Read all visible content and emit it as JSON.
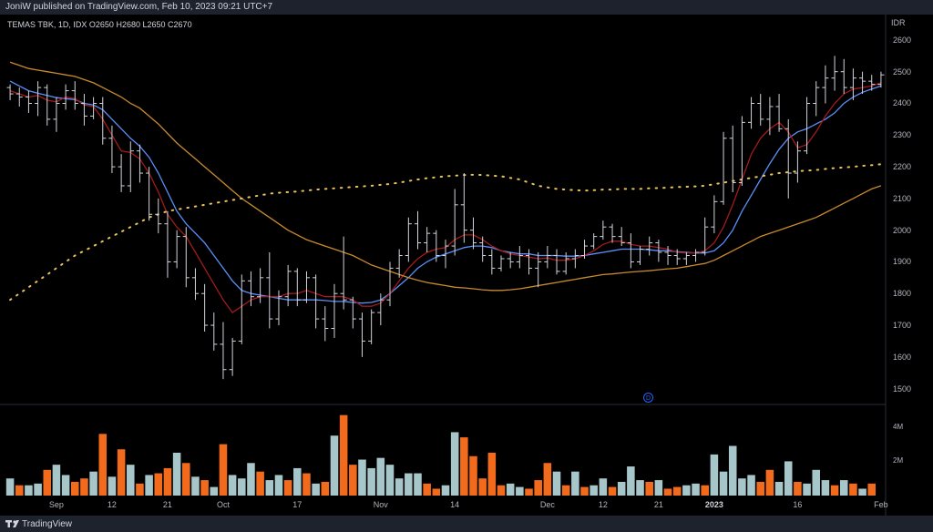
{
  "header": {
    "published_text": "JoniW published on TradingView.com, Feb 10, 2023 09:21 UTC+7"
  },
  "footer": {
    "brand": "TradingView"
  },
  "legend": {
    "symbol": "TEMAS TBK, 1D, IDX",
    "open_label": "O",
    "open": "2650",
    "high_label": "H",
    "high": "2680",
    "low_label": "L",
    "low": "2650",
    "close_label": "C",
    "close": "2670"
  },
  "currency": "IDR",
  "marker": {
    "label": "D"
  },
  "colors": {
    "background": "#000000",
    "bar": "#d1d4dc",
    "volume_up": "#a7c6c9",
    "volume_down": "#f26b1d",
    "ma_blue": "#5b8ff9",
    "ma_red": "#a31a1a",
    "ma_orange": "#c88a2e",
    "ma_dotted": "#e8c25a"
  },
  "chart_data": {
    "type": "ohlc",
    "y_ticks": [
      "2600",
      "2500",
      "2400",
      "2300",
      "2200",
      "2100",
      "2000",
      "1900",
      "1800",
      "1700",
      "1600",
      "1500"
    ],
    "y_tick_values": [
      2600,
      2500,
      2400,
      2300,
      2200,
      2100,
      2000,
      1900,
      1800,
      1700,
      1600,
      1500
    ],
    "ylim": [
      1450,
      2640
    ],
    "volume_ticks": [
      "4M",
      "2M"
    ],
    "volume_tick_values": [
      4000000,
      2000000
    ],
    "volume_ylim": [
      0,
      5000000
    ],
    "x_ticks": [
      {
        "label": "Sep",
        "index": 5
      },
      {
        "label": "12",
        "index": 11
      },
      {
        "label": "21",
        "index": 17
      },
      {
        "label": "Oct",
        "index": 23
      },
      {
        "label": "17",
        "index": 31
      },
      {
        "label": "Nov",
        "index": 40
      },
      {
        "label": "14",
        "index": 48
      },
      {
        "label": "Dec",
        "index": 58
      },
      {
        "label": "12",
        "index": 64
      },
      {
        "label": "21",
        "index": 70
      },
      {
        "label": "2023",
        "index": 76,
        "bold": true
      },
      {
        "label": "16",
        "index": 85
      },
      {
        "label": "Feb",
        "index": 94
      }
    ],
    "ohlc": [
      [
        2450,
        2460,
        2410,
        2430
      ],
      [
        2430,
        2450,
        2390,
        2420
      ],
      [
        2420,
        2440,
        2370,
        2400
      ],
      [
        2400,
        2470,
        2360,
        2450
      ],
      [
        2450,
        2460,
        2330,
        2350
      ],
      [
        2350,
        2420,
        2310,
        2400
      ],
      [
        2400,
        2460,
        2380,
        2440
      ],
      [
        2440,
        2470,
        2380,
        2400
      ],
      [
        2400,
        2430,
        2330,
        2360
      ],
      [
        2360,
        2420,
        2350,
        2400
      ],
      [
        2400,
        2420,
        2270,
        2290
      ],
      [
        2290,
        2330,
        2180,
        2200
      ],
      [
        2200,
        2240,
        2120,
        2140
      ],
      [
        2140,
        2280,
        2120,
        2250
      ],
      [
        2250,
        2270,
        2150,
        2180
      ],
      [
        2180,
        2200,
        2030,
        2050
      ],
      [
        2050,
        2100,
        1990,
        2020
      ],
      [
        2020,
        2060,
        1850,
        1900
      ],
      [
        1900,
        2000,
        1880,
        1980
      ],
      [
        1980,
        2010,
        1820,
        1850
      ],
      [
        1850,
        1880,
        1780,
        1800
      ],
      [
        1800,
        1830,
        1680,
        1700
      ],
      [
        1700,
        1740,
        1620,
        1640
      ],
      [
        1640,
        1710,
        1530,
        1560
      ],
      [
        1560,
        1660,
        1540,
        1650
      ],
      [
        1650,
        1860,
        1640,
        1840
      ],
      [
        1840,
        1870,
        1760,
        1790
      ],
      [
        1790,
        1880,
        1770,
        1850
      ],
      [
        1850,
        1930,
        1690,
        1720
      ],
      [
        1720,
        1810,
        1700,
        1790
      ],
      [
        1790,
        1890,
        1760,
        1870
      ],
      [
        1870,
        1880,
        1760,
        1780
      ],
      [
        1780,
        1870,
        1770,
        1850
      ],
      [
        1850,
        1860,
        1690,
        1720
      ],
      [
        1720,
        1760,
        1650,
        1690
      ],
      [
        1690,
        1830,
        1660,
        1800
      ],
      [
        1800,
        1980,
        1750,
        1780
      ],
      [
        1780,
        1790,
        1690,
        1720
      ],
      [
        1720,
        1740,
        1600,
        1650
      ],
      [
        1650,
        1750,
        1640,
        1740
      ],
      [
        1740,
        1800,
        1700,
        1780
      ],
      [
        1780,
        1900,
        1760,
        1880
      ],
      [
        1880,
        1940,
        1850,
        1920
      ],
      [
        1920,
        2040,
        1900,
        2020
      ],
      [
        2020,
        2060,
        1940,
        1960
      ],
      [
        1960,
        2010,
        1930,
        1990
      ],
      [
        1990,
        2000,
        1900,
        1920
      ],
      [
        1920,
        1970,
        1880,
        1950
      ],
      [
        1950,
        2130,
        1920,
        2080
      ],
      [
        2080,
        2180,
        1960,
        2000
      ],
      [
        2000,
        2040,
        1940,
        1960
      ],
      [
        1960,
        1980,
        1900,
        1920
      ],
      [
        1920,
        1940,
        1860,
        1880
      ],
      [
        1880,
        1920,
        1870,
        1910
      ],
      [
        1910,
        1930,
        1880,
        1900
      ],
      [
        1900,
        1950,
        1880,
        1920
      ],
      [
        1920,
        1940,
        1860,
        1880
      ],
      [
        1880,
        1930,
        1820,
        1900
      ],
      [
        1900,
        1950,
        1880,
        1920
      ],
      [
        1920,
        1940,
        1860,
        1870
      ],
      [
        1870,
        1930,
        1860,
        1910
      ],
      [
        1910,
        1940,
        1880,
        1920
      ],
      [
        1920,
        1970,
        1910,
        1950
      ],
      [
        1950,
        1990,
        1940,
        1980
      ],
      [
        1980,
        2030,
        1970,
        2010
      ],
      [
        2010,
        2020,
        1960,
        1980
      ],
      [
        1980,
        2010,
        1950,
        1960
      ],
      [
        1960,
        1990,
        1880,
        1900
      ],
      [
        1900,
        1950,
        1890,
        1940
      ],
      [
        1940,
        1980,
        1920,
        1960
      ],
      [
        1960,
        1970,
        1900,
        1930
      ],
      [
        1930,
        1950,
        1890,
        1920
      ],
      [
        1920,
        1940,
        1890,
        1910
      ],
      [
        1910,
        1930,
        1890,
        1920
      ],
      [
        1920,
        1940,
        1900,
        1930
      ],
      [
        1930,
        2040,
        1920,
        2010
      ],
      [
        2010,
        2110,
        1990,
        2090
      ],
      [
        2090,
        2310,
        2080,
        2290
      ],
      [
        2290,
        2330,
        2120,
        2150
      ],
      [
        2150,
        2360,
        2140,
        2340
      ],
      [
        2340,
        2420,
        2320,
        2400
      ],
      [
        2400,
        2430,
        2330,
        2350
      ],
      [
        2350,
        2420,
        2300,
        2390
      ],
      [
        2390,
        2430,
        2310,
        2320
      ],
      [
        2320,
        2350,
        2100,
        2180
      ],
      [
        2180,
        2280,
        2150,
        2250
      ],
      [
        2250,
        2420,
        2240,
        2400
      ],
      [
        2400,
        2470,
        2360,
        2450
      ],
      [
        2450,
        2520,
        2400,
        2480
      ],
      [
        2480,
        2550,
        2440,
        2500
      ],
      [
        2500,
        2540,
        2430,
        2450
      ],
      [
        2450,
        2510,
        2410,
        2480
      ],
      [
        2480,
        2500,
        2430,
        2470
      ],
      [
        2470,
        2490,
        2440,
        2460
      ],
      [
        2460,
        2500,
        2450,
        2490
      ]
    ],
    "volume": [
      [
        1.0,
        "up"
      ],
      [
        0.6,
        "down"
      ],
      [
        0.6,
        "up"
      ],
      [
        0.7,
        "up"
      ],
      [
        1.5,
        "down"
      ],
      [
        1.8,
        "up"
      ],
      [
        1.2,
        "up"
      ],
      [
        0.8,
        "down"
      ],
      [
        1.0,
        "down"
      ],
      [
        1.4,
        "up"
      ],
      [
        3.6,
        "down"
      ],
      [
        1.1,
        "up"
      ],
      [
        2.7,
        "down"
      ],
      [
        1.8,
        "up"
      ],
      [
        0.7,
        "down"
      ],
      [
        1.2,
        "up"
      ],
      [
        1.3,
        "down"
      ],
      [
        1.6,
        "down"
      ],
      [
        2.5,
        "up"
      ],
      [
        1.9,
        "down"
      ],
      [
        1.1,
        "up"
      ],
      [
        0.9,
        "down"
      ],
      [
        0.5,
        "up"
      ],
      [
        3.0,
        "down"
      ],
      [
        1.2,
        "up"
      ],
      [
        1.0,
        "up"
      ],
      [
        1.9,
        "up"
      ],
      [
        1.4,
        "down"
      ],
      [
        0.9,
        "up"
      ],
      [
        1.2,
        "up"
      ],
      [
        0.9,
        "down"
      ],
      [
        1.6,
        "up"
      ],
      [
        1.3,
        "down"
      ],
      [
        0.7,
        "up"
      ],
      [
        0.8,
        "down"
      ],
      [
        3.5,
        "up"
      ],
      [
        4.7,
        "down"
      ],
      [
        1.8,
        "down"
      ],
      [
        2.1,
        "up"
      ],
      [
        1.6,
        "up"
      ],
      [
        2.2,
        "up"
      ],
      [
        1.8,
        "up"
      ],
      [
        1.0,
        "up"
      ],
      [
        1.3,
        "up"
      ],
      [
        1.3,
        "up"
      ],
      [
        0.7,
        "down"
      ],
      [
        0.4,
        "down"
      ],
      [
        0.6,
        "up"
      ],
      [
        3.7,
        "up"
      ],
      [
        3.4,
        "down"
      ],
      [
        2.3,
        "down"
      ],
      [
        1.0,
        "down"
      ],
      [
        2.5,
        "down"
      ],
      [
        0.6,
        "down"
      ],
      [
        0.7,
        "up"
      ],
      [
        0.5,
        "up"
      ],
      [
        0.4,
        "down"
      ],
      [
        0.9,
        "down"
      ],
      [
        1.9,
        "down"
      ],
      [
        1.4,
        "up"
      ],
      [
        0.6,
        "down"
      ],
      [
        1.4,
        "up"
      ],
      [
        0.5,
        "down"
      ],
      [
        0.6,
        "up"
      ],
      [
        1.0,
        "up"
      ],
      [
        0.5,
        "down"
      ],
      [
        0.8,
        "up"
      ],
      [
        1.7,
        "up"
      ],
      [
        0.9,
        "up"
      ],
      [
        0.8,
        "down"
      ],
      [
        0.9,
        "up"
      ],
      [
        0.4,
        "down"
      ],
      [
        0.5,
        "down"
      ],
      [
        0.6,
        "up"
      ],
      [
        0.7,
        "up"
      ],
      [
        0.6,
        "down"
      ],
      [
        2.4,
        "up"
      ],
      [
        1.4,
        "up"
      ],
      [
        2.9,
        "up"
      ],
      [
        1.0,
        "up"
      ],
      [
        1.2,
        "up"
      ],
      [
        0.8,
        "down"
      ],
      [
        1.5,
        "down"
      ],
      [
        0.8,
        "up"
      ],
      [
        2.0,
        "up"
      ],
      [
        0.8,
        "down"
      ],
      [
        0.7,
        "up"
      ],
      [
        1.5,
        "up"
      ],
      [
        0.9,
        "up"
      ],
      [
        0.6,
        "down"
      ],
      [
        0.9,
        "up"
      ],
      [
        0.7,
        "down"
      ],
      [
        0.4,
        "up"
      ],
      [
        0.7,
        "down"
      ]
    ],
    "moving_averages": [
      {
        "style": "solid",
        "color_key": "ma_blue",
        "values": [
          2470,
          2455,
          2440,
          2432,
          2425,
          2418,
          2415,
          2412,
          2400,
          2395,
          2380,
          2350,
          2320,
          2290,
          2265,
          2230,
          2180,
          2120,
          2060,
          2020,
          1990,
          1960,
          1920,
          1880,
          1840,
          1810,
          1800,
          1795,
          1790,
          1785,
          1780,
          1780,
          1780,
          1780,
          1778,
          1775,
          1775,
          1772,
          1770,
          1772,
          1780,
          1800,
          1825,
          1850,
          1880,
          1900,
          1915,
          1925,
          1935,
          1945,
          1950,
          1950,
          1945,
          1935,
          1930,
          1925,
          1925,
          1920,
          1920,
          1920,
          1918,
          1918,
          1920,
          1925,
          1930,
          1935,
          1940,
          1940,
          1940,
          1938,
          1935,
          1935,
          1932,
          1930,
          1928,
          1928,
          1935,
          1960,
          2000,
          2060,
          2110,
          2160,
          2210,
          2255,
          2290,
          2310,
          2320,
          2335,
          2350,
          2370,
          2400,
          2420,
          2435,
          2445,
          2455
        ]
      },
      {
        "style": "solid",
        "color_key": "ma_red",
        "values": [
          2440,
          2430,
          2420,
          2425,
          2410,
          2405,
          2420,
          2415,
          2395,
          2390,
          2350,
          2300,
          2250,
          2245,
          2225,
          2180,
          2120,
          2050,
          2010,
          1980,
          1930,
          1880,
          1830,
          1780,
          1740,
          1760,
          1780,
          1790,
          1790,
          1790,
          1800,
          1800,
          1810,
          1800,
          1790,
          1790,
          1790,
          1780,
          1760,
          1760,
          1770,
          1800,
          1840,
          1880,
          1910,
          1930,
          1940,
          1945,
          1970,
          1985,
          1985,
          1970,
          1950,
          1935,
          1925,
          1920,
          1915,
          1910,
          1912,
          1905,
          1905,
          1910,
          1920,
          1935,
          1955,
          1965,
          1965,
          1955,
          1950,
          1950,
          1945,
          1940,
          1930,
          1928,
          1928,
          1935,
          1960,
          2010,
          2080,
          2160,
          2240,
          2290,
          2320,
          2340,
          2310,
          2260,
          2270,
          2310,
          2360,
          2400,
          2430,
          2445,
          2450,
          2455,
          2465
        ]
      },
      {
        "style": "solid",
        "color_key": "ma_orange",
        "values": [
          2530,
          2520,
          2510,
          2505,
          2500,
          2495,
          2490,
          2485,
          2475,
          2465,
          2450,
          2435,
          2420,
          2400,
          2385,
          2360,
          2335,
          2305,
          2275,
          2250,
          2225,
          2200,
          2175,
          2150,
          2125,
          2100,
          2080,
          2060,
          2040,
          2020,
          2000,
          1985,
          1970,
          1960,
          1950,
          1940,
          1930,
          1920,
          1905,
          1890,
          1880,
          1870,
          1860,
          1850,
          1842,
          1835,
          1830,
          1825,
          1820,
          1818,
          1815,
          1812,
          1810,
          1810,
          1812,
          1815,
          1820,
          1825,
          1830,
          1835,
          1840,
          1845,
          1850,
          1855,
          1860,
          1862,
          1865,
          1868,
          1870,
          1872,
          1875,
          1878,
          1880,
          1885,
          1890,
          1895,
          1905,
          1920,
          1935,
          1950,
          1965,
          1980,
          1990,
          2000,
          2010,
          2020,
          2030,
          2040,
          2055,
          2070,
          2085,
          2100,
          2115,
          2130,
          2140
        ]
      },
      {
        "style": "dotted",
        "color_key": "ma_dotted",
        "values": [
          1780,
          1800,
          1820,
          1840,
          1860,
          1880,
          1900,
          1920,
          1935,
          1950,
          1965,
          1980,
          1995,
          2010,
          2025,
          2040,
          2050,
          2060,
          2065,
          2070,
          2075,
          2080,
          2085,
          2090,
          2095,
          2100,
          2105,
          2110,
          2115,
          2118,
          2120,
          2122,
          2125,
          2128,
          2130,
          2132,
          2134,
          2136,
          2138,
          2140,
          2143,
          2146,
          2150,
          2155,
          2160,
          2164,
          2167,
          2170,
          2172,
          2174,
          2175,
          2174,
          2172,
          2170,
          2165,
          2160,
          2150,
          2140,
          2135,
          2130,
          2128,
          2126,
          2125,
          2126,
          2128,
          2128,
          2130,
          2130,
          2130,
          2132,
          2133,
          2134,
          2136,
          2137,
          2138,
          2140,
          2145,
          2150,
          2155,
          2160,
          2165,
          2170,
          2175,
          2180,
          2183,
          2186,
          2188,
          2190,
          2193,
          2196,
          2198,
          2200,
          2203,
          2205,
          2208
        ]
      }
    ]
  }
}
